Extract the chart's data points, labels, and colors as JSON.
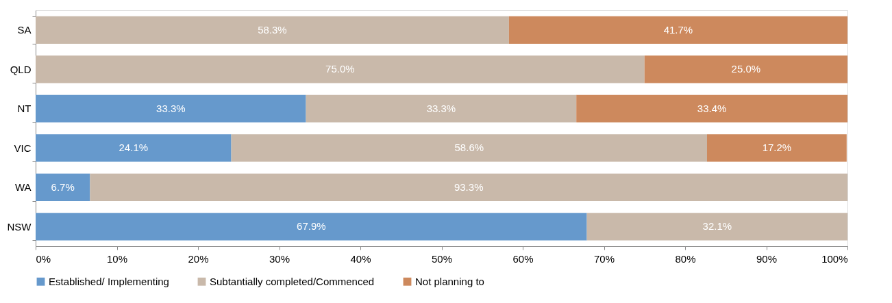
{
  "chart_data": {
    "type": "bar",
    "orientation": "horizontal",
    "stacked": true,
    "categories": [
      "SA",
      "QLD",
      "NT",
      "VIC",
      "WA",
      "NSW"
    ],
    "series": [
      {
        "name": "Established/ Implementing",
        "color": "#6699cc",
        "values": [
          null,
          null,
          33.3,
          24.1,
          6.7,
          67.9
        ],
        "value_labels": [
          null,
          null,
          "33.3%",
          "24.1%",
          "6.7%",
          "67.9%"
        ]
      },
      {
        "name": "Subtantially completed/Commenced",
        "color": "#c9b9aa",
        "values": [
          58.3,
          75.0,
          33.3,
          58.6,
          93.3,
          32.1
        ],
        "value_labels": [
          "58.3%",
          "75.0%",
          "33.3%",
          "58.6%",
          "93.3%",
          "32.1%"
        ]
      },
      {
        "name": "Not planning to",
        "color": "#cd895d",
        "values": [
          41.7,
          25.0,
          33.4,
          17.2,
          null,
          null
        ],
        "value_labels": [
          "41.7%",
          "25.0%",
          "33.4%",
          "17.2%",
          null,
          null
        ]
      }
    ],
    "xlim": [
      0,
      100
    ],
    "xticks": [
      {
        "value": 0,
        "label": "0%"
      },
      {
        "value": 10,
        "label": "10%"
      },
      {
        "value": 20,
        "label": "20%"
      },
      {
        "value": 30,
        "label": "30%"
      },
      {
        "value": 40,
        "label": "40%"
      },
      {
        "value": 50,
        "label": "50%"
      },
      {
        "value": 60,
        "label": "60%"
      },
      {
        "value": 70,
        "label": "70%"
      },
      {
        "value": 80,
        "label": "80%"
      },
      {
        "value": 90,
        "label": "90%"
      },
      {
        "value": 100,
        "label": "100%"
      }
    ],
    "grid": false,
    "legend": "bottom"
  }
}
